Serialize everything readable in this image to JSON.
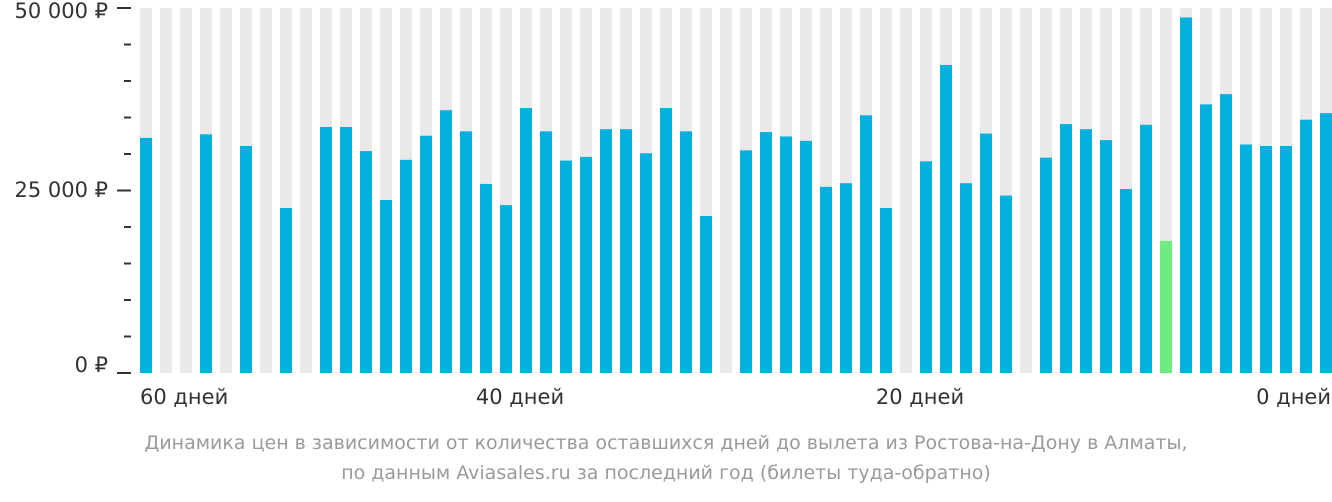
{
  "chart_data": {
    "type": "bar",
    "x_label_ticks": [
      "60 дней",
      "40 дней",
      "20 дней",
      "0 дней"
    ],
    "y_tick_labels": [
      "50 000 ₽",
      "25 000 ₽",
      "0 ₽"
    ],
    "y_ticks": [
      50000,
      25000,
      0
    ],
    "ylim": [
      0,
      50000
    ],
    "days_left": [
      60,
      59,
      58,
      57,
      56,
      55,
      54,
      53,
      52,
      51,
      50,
      49,
      48,
      47,
      46,
      45,
      44,
      43,
      42,
      41,
      40,
      39,
      38,
      37,
      36,
      35,
      34,
      33,
      32,
      31,
      30,
      29,
      28,
      27,
      26,
      25,
      24,
      23,
      22,
      21,
      20,
      19,
      18,
      17,
      16,
      15,
      14,
      13,
      12,
      11,
      10,
      9,
      8,
      7,
      6,
      5,
      4,
      3,
      2,
      1,
      0
    ],
    "values": [
      32200,
      null,
      null,
      32700,
      null,
      31100,
      null,
      22600,
      null,
      33700,
      33700,
      30400,
      23700,
      29200,
      32500,
      36000,
      33100,
      25900,
      23000,
      36300,
      33100,
      29100,
      29600,
      33400,
      33400,
      30100,
      36300,
      33100,
      21500,
      null,
      30500,
      33000,
      32400,
      31800,
      25500,
      26000,
      35300,
      22600,
      null,
      29000,
      42200,
      26000,
      32800,
      24300,
      null,
      29500,
      34100,
      33400,
      31900,
      25200,
      34000,
      18100,
      48700,
      36800,
      38200,
      31300,
      31100,
      31100,
      34700,
      35600,
      null
    ],
    "highlight_color": "#6fec7f",
    "bar_color": "#04b0de",
    "background_stripe_color": "#e9e9e9",
    "highlighted_index": 51,
    "caption_line_1": "Динамика цен в зависимости от количества оставшихся дней до вылета из Ростова-на-Дону в Алматы,",
    "caption_line_2": "по данным Aviasales.ru за последний год (билеты туда-обратно)"
  }
}
